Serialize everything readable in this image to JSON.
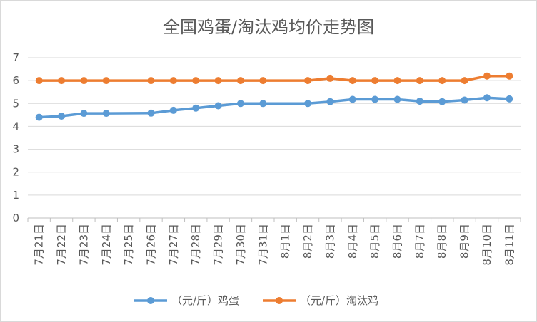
{
  "chart_data": {
    "type": "line",
    "title": "全国鸡蛋/淘汰鸡均价走势图",
    "categories": [
      "7月21日",
      "7月22日",
      "7月23日",
      "7月24日",
      "7月25日",
      "7月26日",
      "7月27日",
      "7月28日",
      "7月29日",
      "7月30日",
      "7月31日",
      "8月1日",
      "8月2日",
      "8月3日",
      "8月4日",
      "8月5日",
      "8月6日",
      "8月7日",
      "8月8日",
      "8月9日",
      "8月10日",
      "8月11日"
    ],
    "series": [
      {
        "name": "（元/斤）鸡蛋",
        "color": "#5B9BD5",
        "values": [
          4.4,
          4.45,
          4.57,
          4.57,
          null,
          4.58,
          4.7,
          4.8,
          4.9,
          5.0,
          5.0,
          null,
          5.0,
          5.08,
          5.18,
          5.18,
          5.18,
          5.1,
          5.08,
          5.15,
          5.25,
          5.2
        ]
      },
      {
        "name": "（元/斤）淘汰鸡",
        "color": "#ED7D31",
        "values": [
          6.0,
          6.0,
          6.0,
          6.0,
          null,
          6.0,
          6.0,
          6.0,
          6.0,
          6.0,
          6.0,
          null,
          6.0,
          6.1,
          6.0,
          6.0,
          6.0,
          6.0,
          6.0,
          6.0,
          6.2,
          6.2
        ]
      }
    ],
    "y_ticks": [
      "0",
      "1",
      "2",
      "3",
      "4",
      "5",
      "6",
      "7"
    ],
    "ylim": [
      0,
      7
    ],
    "grid": true,
    "legend": "bottom"
  }
}
